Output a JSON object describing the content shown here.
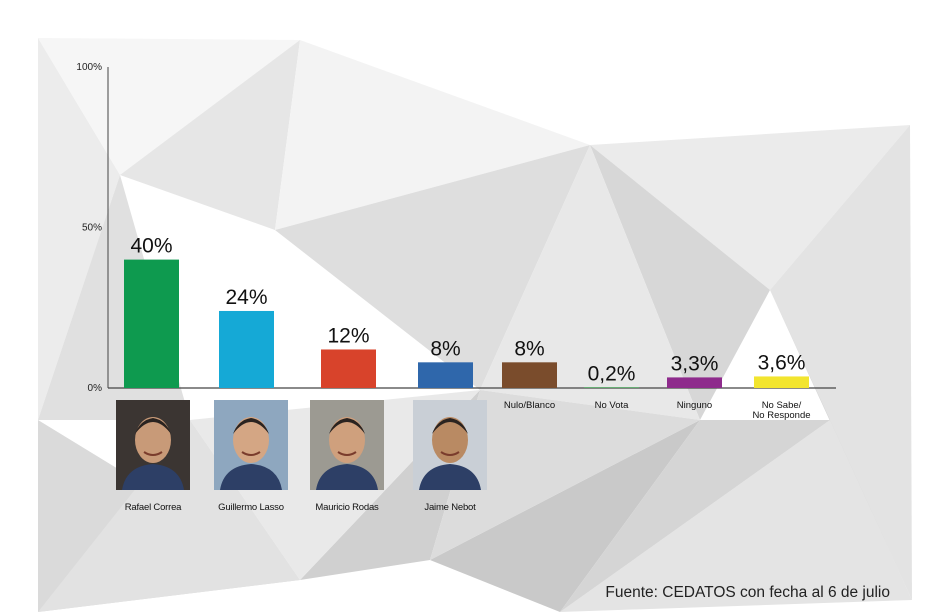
{
  "chart_data": {
    "type": "bar",
    "ylim": [
      0,
      100
    ],
    "y_ticks": [
      {
        "value": 0,
        "label": "0%"
      },
      {
        "value": 50,
        "label": "50%"
      },
      {
        "value": 100,
        "label": "100%"
      }
    ],
    "grid": false,
    "categories": [
      "Rafael Correa",
      "Guillermo Lasso",
      "Mauricio Rodas",
      "Jaime Nebot",
      "Nulo/Blanco",
      "No Vota",
      "Ninguno",
      "No Sabe/\nNo Responde"
    ],
    "values": [
      40,
      24,
      12,
      8,
      8,
      0.2,
      3.3,
      3.6
    ],
    "value_labels": [
      "40%",
      "24%",
      "12%",
      "8%",
      "8%",
      "0,2%",
      "3,3%",
      "3,6%"
    ],
    "colors": [
      "#0e9a4f",
      "#15a9d6",
      "#d8432b",
      "#2f67ab",
      "#7a4c2c",
      "#37a54c",
      "#8e2b8c",
      "#f2e52f"
    ],
    "source": "Fuente: CEDATOS con fecha al 6 de julio"
  },
  "candidates": [
    {
      "name": "Rafael Correa",
      "icon": "portrait-rafael-correa"
    },
    {
      "name": "Guillermo Lasso",
      "icon": "portrait-guillermo-lasso"
    },
    {
      "name": "Mauricio Rodas",
      "icon": "portrait-mauricio-rodas"
    },
    {
      "name": "Jaime Nebot",
      "icon": "portrait-jaime-nebot"
    }
  ]
}
